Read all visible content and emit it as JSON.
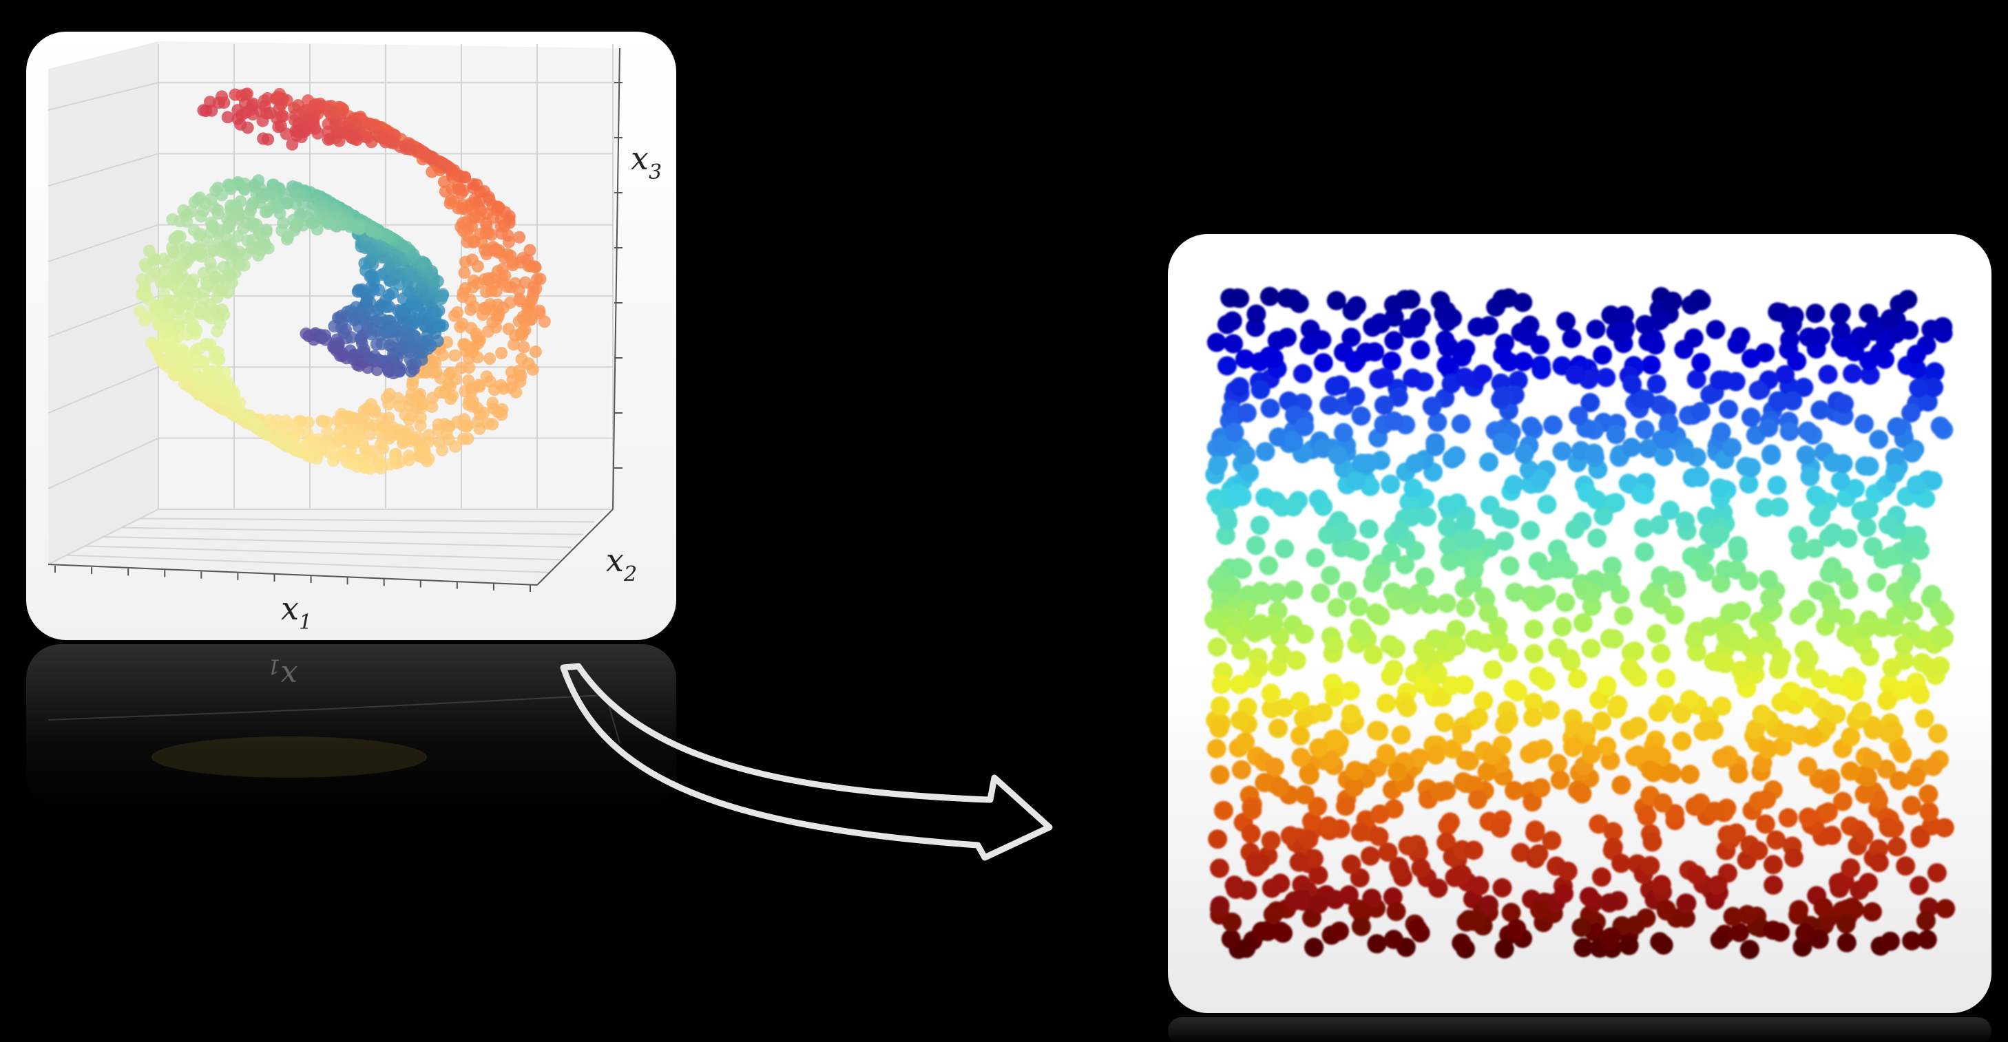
{
  "left_panel": {
    "axis_labels": {
      "x1": "x",
      "x1_sub": "1",
      "x2": "x",
      "x2_sub": "2",
      "x3": "x",
      "x3_sub": "3"
    },
    "reflection_text": "x",
    "reflection_sub": "1"
  },
  "colors": {
    "background": "#000000",
    "panel": "#ffffff",
    "arrow": "#e8e8e8",
    "colormap_left": "spectral",
    "colormap_right": "jet"
  }
}
